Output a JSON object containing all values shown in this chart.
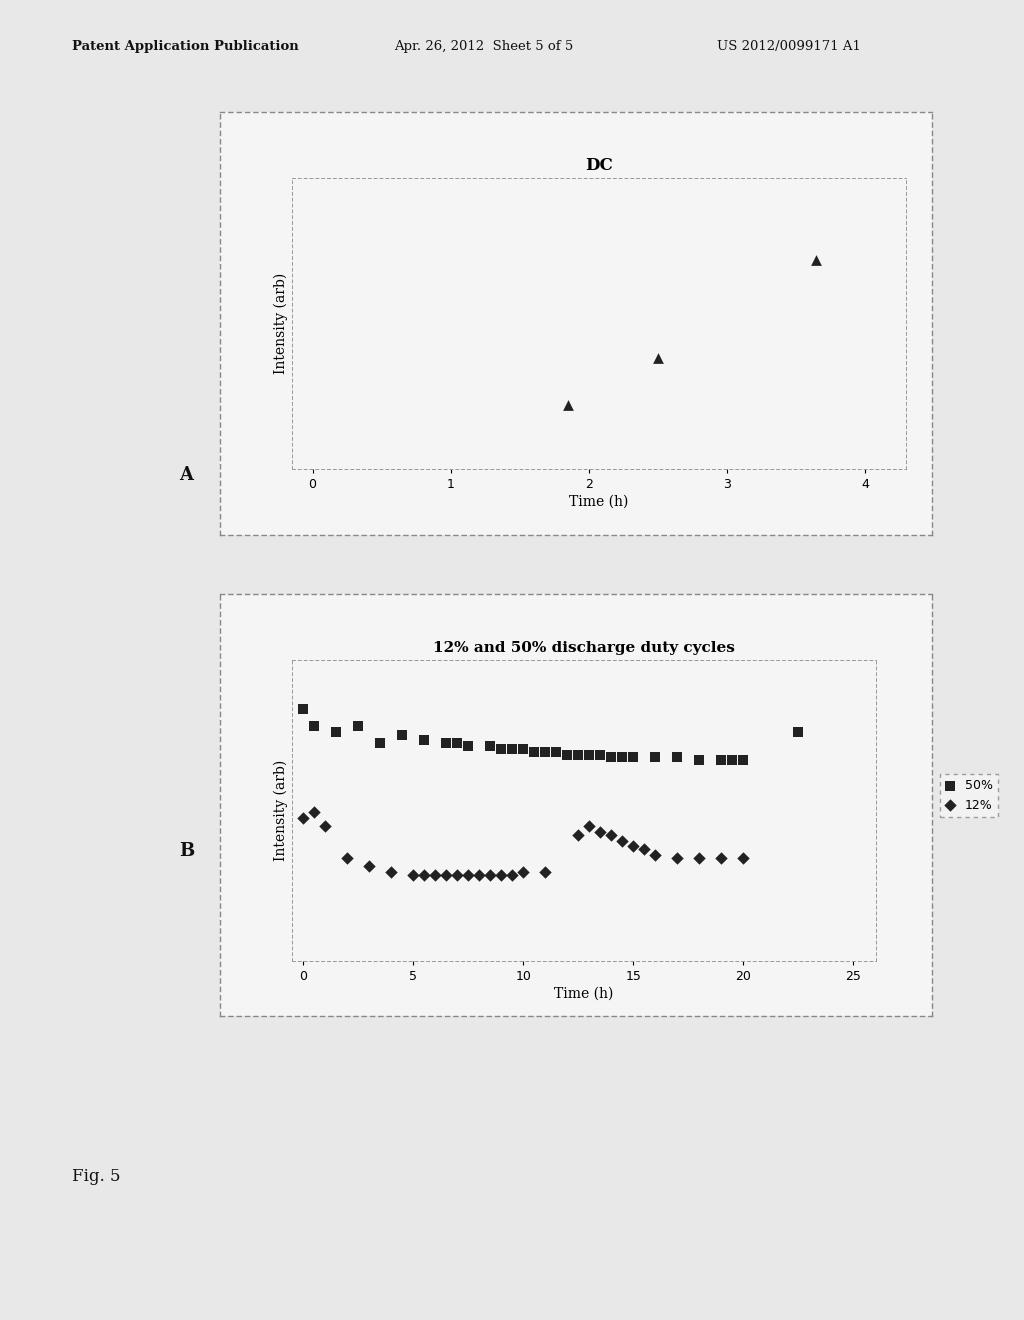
{
  "header_left": "Patent Application Publication",
  "header_mid": "Apr. 26, 2012  Sheet 5 of 5",
  "header_right": "US 2012/0099171 A1",
  "fig_label": "Fig. 5",
  "bg_color": "#e8e8e8",
  "plot_bg": "#f5f5f5",
  "text_color": "#111111",
  "marker_color": "#222222",
  "plot_A": {
    "title": "DC",
    "xlabel": "Time (h)",
    "ylabel": "Intensity (arb)",
    "label": "A",
    "x": [
      1.85,
      2.5,
      3.65
    ],
    "y": [
      0.22,
      0.38,
      0.72
    ],
    "marker": "^",
    "xlim": [
      -0.15,
      4.3
    ],
    "ylim": [
      0,
      1.0
    ],
    "xticks": [
      0,
      1,
      2,
      3,
      4
    ]
  },
  "plot_B": {
    "title": "12% and 50% discharge duty cycles",
    "xlabel": "Time (h)",
    "ylabel": "Intensity (arb)",
    "label": "B",
    "x_50": [
      0.0,
      0.5,
      1.5,
      2.5,
      3.5,
      4.5,
      5.5,
      6.5,
      7.0,
      7.5,
      8.5,
      9.0,
      9.5,
      10.0,
      10.5,
      11.0,
      11.5,
      12.0,
      12.5,
      13.0,
      13.5,
      14.0,
      14.5,
      15.0,
      16.0,
      17.0,
      18.0,
      19.0,
      19.5,
      20.0,
      22.5
    ],
    "y_50": [
      0.88,
      0.82,
      0.8,
      0.82,
      0.76,
      0.79,
      0.77,
      0.76,
      0.76,
      0.75,
      0.75,
      0.74,
      0.74,
      0.74,
      0.73,
      0.73,
      0.73,
      0.72,
      0.72,
      0.72,
      0.72,
      0.71,
      0.71,
      0.71,
      0.71,
      0.71,
      0.7,
      0.7,
      0.7,
      0.7,
      0.8
    ],
    "x_12": [
      0.0,
      0.5,
      1.0,
      2.0,
      3.0,
      4.0,
      5.0,
      5.5,
      6.0,
      6.5,
      7.0,
      7.5,
      8.0,
      8.5,
      9.0,
      9.5,
      10.0,
      11.0,
      12.5,
      13.0,
      13.5,
      14.0,
      14.5,
      15.0,
      15.5,
      16.0,
      17.0,
      18.0,
      19.0,
      20.0
    ],
    "y_12": [
      0.5,
      0.52,
      0.47,
      0.36,
      0.33,
      0.31,
      0.3,
      0.3,
      0.3,
      0.3,
      0.3,
      0.3,
      0.3,
      0.3,
      0.3,
      0.3,
      0.31,
      0.31,
      0.44,
      0.47,
      0.45,
      0.44,
      0.42,
      0.4,
      0.39,
      0.37,
      0.36,
      0.36,
      0.36,
      0.36
    ],
    "xlim": [
      -0.5,
      26
    ],
    "ylim": [
      0,
      1.05
    ],
    "xticks": [
      0,
      5,
      10,
      15,
      20,
      25
    ],
    "legend_50": "50%",
    "legend_12": "12%"
  }
}
